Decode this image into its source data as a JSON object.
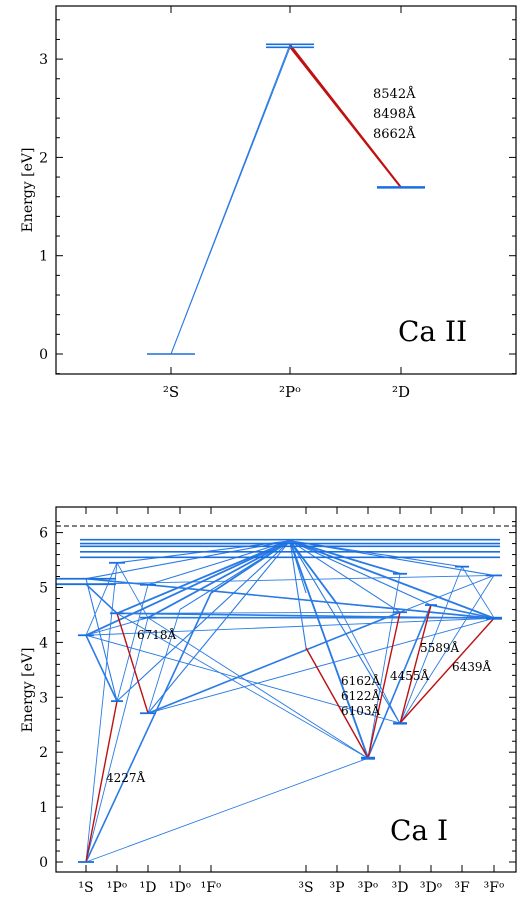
{
  "colors": {
    "level": "#1a6fdf",
    "transition": "#2a7be4",
    "highlight": "#c01010"
  },
  "panels": [
    {
      "id": "caii",
      "title": "Ca II",
      "ylabel": "Energy [eV]",
      "ylim": [
        -0.2,
        3.45
      ],
      "yticks": [
        "0",
        "1",
        "2",
        "3"
      ],
      "terms": [
        "²S",
        "²Pᵒ",
        "²D"
      ],
      "wavelengths": [
        "8542Å",
        "8498Å",
        "8662Å"
      ],
      "levels": [
        {
          "term": 0,
          "e": 0.0
        },
        {
          "term": 1,
          "e": 3.12
        },
        {
          "term": 1,
          "e": 3.15
        },
        {
          "term": 2,
          "e": 1.69
        },
        {
          "term": 2,
          "e": 1.7
        }
      ],
      "transitions": [
        {
          "from": [
            0,
            0.0
          ],
          "to": [
            1,
            3.12
          ],
          "color": "transition"
        },
        {
          "from": [
            0,
            0.0
          ],
          "to": [
            1,
            3.15
          ],
          "color": "transition"
        },
        {
          "from": [
            1,
            3.12
          ],
          "to": [
            2,
            1.69
          ],
          "color": "highlight"
        },
        {
          "from": [
            1,
            3.15
          ],
          "to": [
            2,
            1.7
          ],
          "color": "highlight"
        },
        {
          "from": [
            1,
            3.13
          ],
          "to": [
            2,
            1.69
          ],
          "color": "highlight"
        }
      ]
    },
    {
      "id": "cai",
      "title": "Ca I",
      "ylabel": "Energy [eV]",
      "ylim": [
        -0.1,
        6.35
      ],
      "yticks": [
        "0",
        "1",
        "2",
        "3",
        "4",
        "5",
        "6"
      ],
      "ionization_energy": 6.11,
      "terms": [
        "¹S",
        "¹Pᵒ",
        "¹D",
        "¹Dᵒ",
        "¹Fᵒ",
        "³S",
        "³P",
        "³Pᵒ",
        "³D",
        "³Dᵒ",
        "³F",
        "³Fᵒ"
      ],
      "wavelengths": [
        "6718Å",
        "4227Å",
        "6162Å",
        "6122Å",
        "6103Å",
        "4455Å",
        "5589Å",
        "6439Å"
      ],
      "high_levels": [
        5.55,
        5.65,
        5.75,
        5.8,
        5.87
      ]
    }
  ]
}
